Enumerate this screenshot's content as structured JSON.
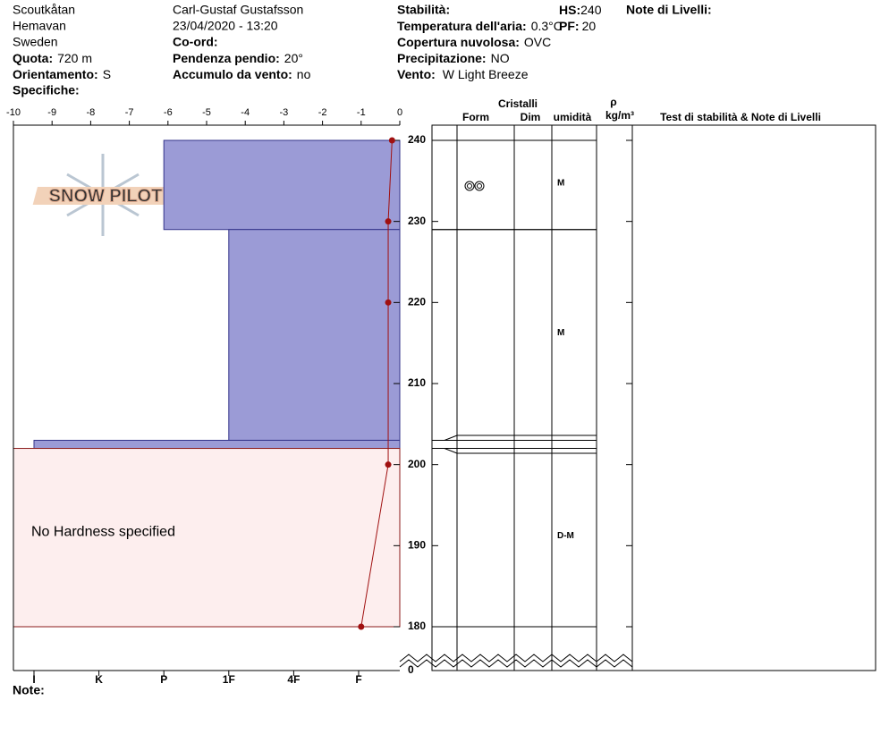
{
  "header": {
    "location": "Scoutkåtan",
    "region": "Hemavan",
    "country": "Sweden",
    "elevation": {
      "label": "Quota:",
      "value": "720 m"
    },
    "aspect": {
      "label": "Orientamento:",
      "value": "S"
    },
    "specifics": {
      "label": "Specifiche:"
    },
    "observer": "Carl-Gustaf Gustafsson",
    "datetime": "23/04/2020 - 13:20",
    "coords": {
      "label": "Co-ord:"
    },
    "slope": {
      "label": "Pendenza pendio:",
      "value": "20°"
    },
    "wind_loading": {
      "label": "Accumulo da vento:",
      "value": "no"
    },
    "stability": {
      "label": "Stabilità:"
    },
    "air_temp": {
      "label": "Temperatura dell'aria:",
      "value": "0.3°C"
    },
    "sky": {
      "label": "Copertura nuvolosa:",
      "value": "OVC"
    },
    "precip": {
      "label": "Precipitazione:",
      "value": "NO"
    },
    "wind": {
      "label": "Vento:",
      "value": "W Light Breeze"
    },
    "hs": {
      "label": "HS:",
      "value": "240"
    },
    "pf": {
      "label": "PF:",
      "value": "20"
    },
    "layer_notes": {
      "label": "Note di Livelli:"
    }
  },
  "columns": {
    "crystals": "Cristalli",
    "form": "Form",
    "size": "Dim",
    "moisture": "umidità",
    "density": "ρ",
    "density_unit": "kg/m³",
    "tests": "Test di stabilità & Note di Livelli"
  },
  "logo": "SNOW PILOT",
  "notes_label": "Note:",
  "no_hardness_label": "No Hardness specified",
  "chart_data": {
    "type": "snow_profile",
    "xlim": [
      -10,
      0
    ],
    "xticks": [
      -10,
      -9,
      -8,
      -7,
      -6,
      -5,
      -4,
      -3,
      -2,
      -1,
      0
    ],
    "ylim": [
      180,
      240
    ],
    "yticks": [
      180,
      190,
      200,
      210,
      220,
      230,
      240
    ],
    "ground": 0,
    "hardness_scale": [
      "I",
      "K",
      "P",
      "1F",
      "4F",
      "F"
    ],
    "temperature": {
      "color": "#a01010",
      "depths": [
        240,
        230,
        220,
        200,
        180
      ],
      "values": [
        -0.2,
        -0.3,
        -0.3,
        -0.3,
        -1.0
      ]
    },
    "layers": [
      {
        "top": 240,
        "bottom": 229,
        "hardness": "P",
        "moisture": "M"
      },
      {
        "top": 229,
        "bottom": 203,
        "hardness": "1F",
        "moisture": "M"
      },
      {
        "top": 203,
        "bottom": 202,
        "hardness": "I"
      },
      {
        "top": 202,
        "bottom": 180,
        "moisture": "D-M"
      }
    ],
    "hardness_color": "#9b9bd6",
    "none_color": "#fdeeee"
  }
}
